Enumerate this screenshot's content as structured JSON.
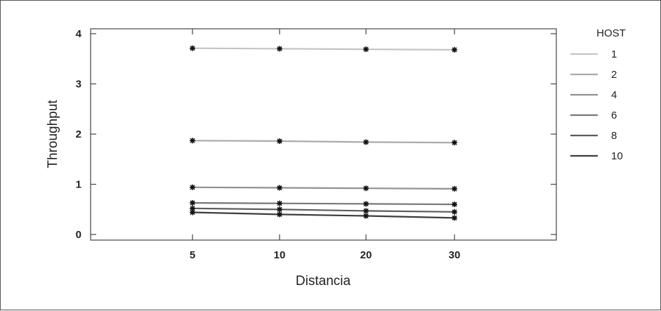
{
  "chart_data": {
    "type": "line",
    "title": "",
    "xlabel": "Distancia",
    "ylabel": "Throughput",
    "categories": [
      "5",
      "10",
      "20",
      "30"
    ],
    "ylim": [
      0,
      4
    ],
    "yticks": [
      0,
      1,
      2,
      3,
      4
    ],
    "grid": false,
    "legend_title": "HOST",
    "legend_position": "right",
    "marker": "asterisk",
    "series": [
      {
        "name": "1",
        "color": "#c4c4c4",
        "values": [
          3.71,
          3.7,
          3.69,
          3.68
        ]
      },
      {
        "name": "2",
        "color": "#aaaaaa",
        "values": [
          1.87,
          1.86,
          1.84,
          1.83
        ]
      },
      {
        "name": "4",
        "color": "#919191",
        "values": [
          0.94,
          0.93,
          0.92,
          0.91
        ]
      },
      {
        "name": "6",
        "color": "#777777",
        "values": [
          0.63,
          0.62,
          0.61,
          0.6
        ]
      },
      {
        "name": "8",
        "color": "#5c5c5c",
        "values": [
          0.52,
          0.5,
          0.47,
          0.45
        ]
      },
      {
        "name": "10",
        "color": "#3d3d3d",
        "values": [
          0.44,
          0.4,
          0.37,
          0.33
        ]
      }
    ]
  }
}
